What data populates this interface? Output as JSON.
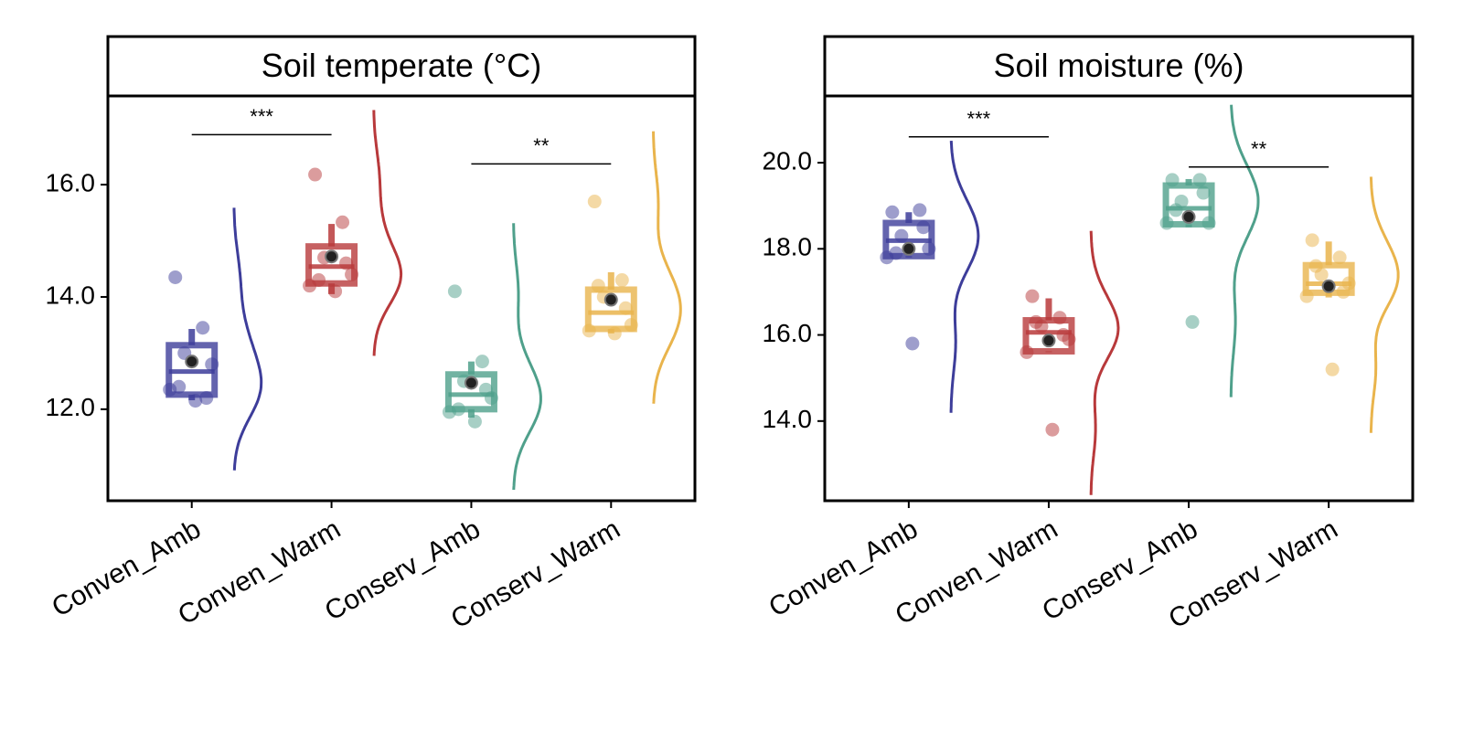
{
  "chart_data": [
    {
      "type": "raincloud",
      "title": "Soil temperate (°C)",
      "categories": [
        "Conven_Amb",
        "Conven_Warm",
        "Conserv_Amb",
        "Conserv_Warm"
      ],
      "ylim": [
        10.37,
        17.58
      ],
      "yticks": [
        {
          "value": 12,
          "label": "12.0"
        },
        {
          "value": 14,
          "label": "14.0"
        },
        {
          "value": 16,
          "label": "16.0"
        }
      ],
      "boxes": [
        {
          "color": "#3d3d9a",
          "q1": 12.26,
          "median": 12.67,
          "q3": 13.14,
          "whislo": 12.16,
          "whishi": 13.43,
          "mean": 12.85,
          "points": [
            14.35,
            13.45,
            13.0,
            12.8,
            12.35,
            12.15,
            12.2,
            12.4
          ]
        },
        {
          "color": "#b8393b",
          "q1": 14.24,
          "median": 14.54,
          "q3": 14.9,
          "whislo": 14.05,
          "whishi": 15.3,
          "mean": 14.72,
          "points": [
            16.18,
            15.33,
            14.7,
            14.4,
            14.2,
            14.1,
            14.6,
            14.3
          ]
        },
        {
          "color": "#4fa08b",
          "q1": 12.0,
          "median": 12.26,
          "q3": 12.62,
          "whislo": 11.85,
          "whishi": 12.85,
          "mean": 12.47,
          "points": [
            14.1,
            12.85,
            12.5,
            12.2,
            11.95,
            11.78,
            12.35,
            12.0
          ]
        },
        {
          "color": "#e9b44c",
          "q1": 13.43,
          "median": 13.72,
          "q3": 14.13,
          "whislo": 13.35,
          "whishi": 14.44,
          "mean": 13.95,
          "points": [
            15.7,
            14.3,
            14.0,
            13.5,
            13.4,
            13.35,
            13.8,
            14.2
          ]
        }
      ],
      "annotations": [
        {
          "text": "***",
          "y": 16.89,
          "x": [
            0,
            1
          ]
        },
        {
          "text": "**",
          "y": 16.37,
          "x": [
            2,
            3
          ]
        }
      ]
    },
    {
      "type": "raincloud",
      "title": "Soil moisture (%)",
      "categories": [
        "Conven_Amb",
        "Conven_Warm",
        "Conserv_Amb",
        "Conserv_Warm"
      ],
      "ylim": [
        12.15,
        21.55
      ],
      "yticks": [
        {
          "value": 14,
          "label": "14.0"
        },
        {
          "value": 16,
          "label": "16.0"
        },
        {
          "value": 18,
          "label": "18.0"
        },
        {
          "value": 20,
          "label": "20.0"
        }
      ],
      "boxes": [
        {
          "color": "#3d3d9a",
          "q1": 17.83,
          "median": 18.19,
          "q3": 18.6,
          "whislo": 17.8,
          "whishi": 18.85,
          "mean": 18.0,
          "points": [
            18.85,
            18.9,
            18.3,
            18.0,
            17.8,
            15.8,
            18.5,
            17.9
          ]
        },
        {
          "color": "#b8393b",
          "q1": 15.62,
          "median": 16.06,
          "q3": 16.34,
          "whislo": 15.6,
          "whishi": 16.85,
          "mean": 15.87,
          "points": [
            16.9,
            16.4,
            16.2,
            15.9,
            15.6,
            13.8,
            16.0,
            16.3
          ]
        },
        {
          "color": "#4fa08b",
          "q1": 18.57,
          "median": 18.94,
          "q3": 19.47,
          "whislo": 18.5,
          "whishi": 19.62,
          "mean": 18.74,
          "points": [
            19.6,
            19.6,
            19.1,
            18.6,
            18.6,
            16.3,
            19.3,
            18.9
          ]
        },
        {
          "color": "#e9b44c",
          "q1": 16.98,
          "median": 17.19,
          "q3": 17.62,
          "whislo": 16.87,
          "whishi": 18.17,
          "mean": 17.13,
          "points": [
            18.2,
            17.8,
            17.4,
            17.2,
            16.9,
            15.2,
            17.0,
            17.6
          ]
        }
      ],
      "annotations": [
        {
          "text": "***",
          "y": 20.6,
          "x": [
            0,
            1
          ]
        },
        {
          "text": "**",
          "y": 19.9,
          "x": [
            2,
            3
          ]
        }
      ]
    }
  ]
}
